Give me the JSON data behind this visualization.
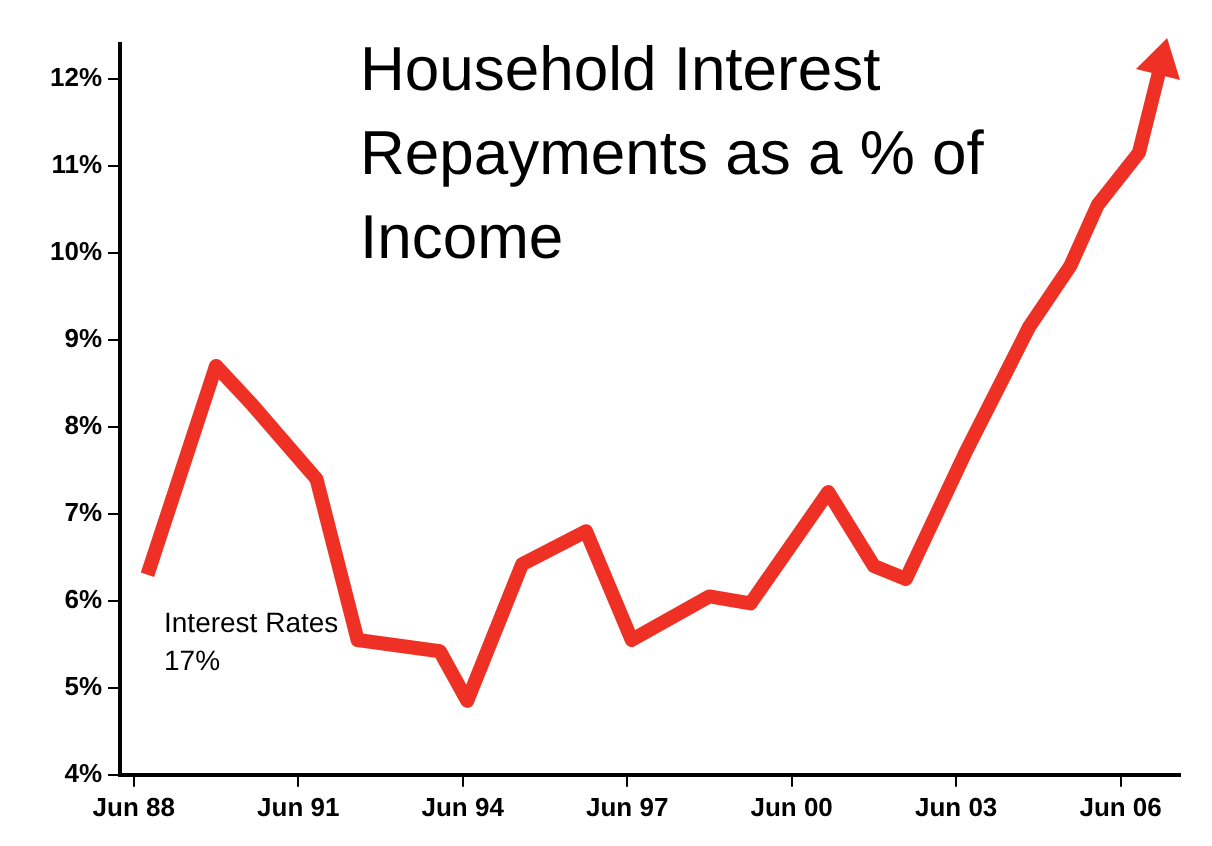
{
  "chart_data": {
    "type": "line",
    "title": "Household Interest Repayments as a % of Income",
    "x": [
      "1988-09",
      "1989-12",
      "1990-08",
      "1991-10",
      "1992-07",
      "1994-01",
      "1994-07",
      "1995-07",
      "1996-09",
      "1997-07",
      "1998-12",
      "1999-09",
      "2001-02",
      "2001-12",
      "2002-07",
      "2003-08",
      "2004-10",
      "2005-07",
      "2006-01",
      "2006-10",
      "2007-03"
    ],
    "series": [
      {
        "color": "#ee3124",
        "values": [
          6.3,
          8.7,
          8.25,
          7.4,
          5.55,
          5.42,
          4.85,
          6.42,
          6.8,
          5.55,
          6.05,
          5.97,
          7.25,
          6.4,
          6.25,
          7.7,
          9.15,
          9.85,
          10.55,
          11.15,
          12.2
        ]
      }
    ],
    "xlim": [
      "1988-03",
      "2007-07"
    ],
    "xticks": [
      {
        "value": "1988-06",
        "label": "Jun 88"
      },
      {
        "value": "1991-06",
        "label": "Jun 91"
      },
      {
        "value": "1994-06",
        "label": "Jun 94"
      },
      {
        "value": "1997-06",
        "label": "Jun 97"
      },
      {
        "value": "2000-06",
        "label": "Jun 00"
      },
      {
        "value": "2003-06",
        "label": "Jun 03"
      },
      {
        "value": "2006-06",
        "label": "Jun 06"
      }
    ],
    "ylim": [
      4,
      12.4
    ],
    "yticks": [
      {
        "value": 4,
        "label": "4%"
      },
      {
        "value": 5,
        "label": "5%"
      },
      {
        "value": 6,
        "label": "6%"
      },
      {
        "value": 7,
        "label": "7%"
      },
      {
        "value": 8,
        "label": "8%"
      },
      {
        "value": 9,
        "label": "9%"
      },
      {
        "value": 10,
        "label": "10%"
      },
      {
        "value": 11,
        "label": "11%"
      },
      {
        "value": 12,
        "label": "12%"
      }
    ],
    "annotations": [
      "Interest Rates 17%"
    ],
    "grid": false,
    "legend": false,
    "marker": "none",
    "line_style": "solid"
  }
}
